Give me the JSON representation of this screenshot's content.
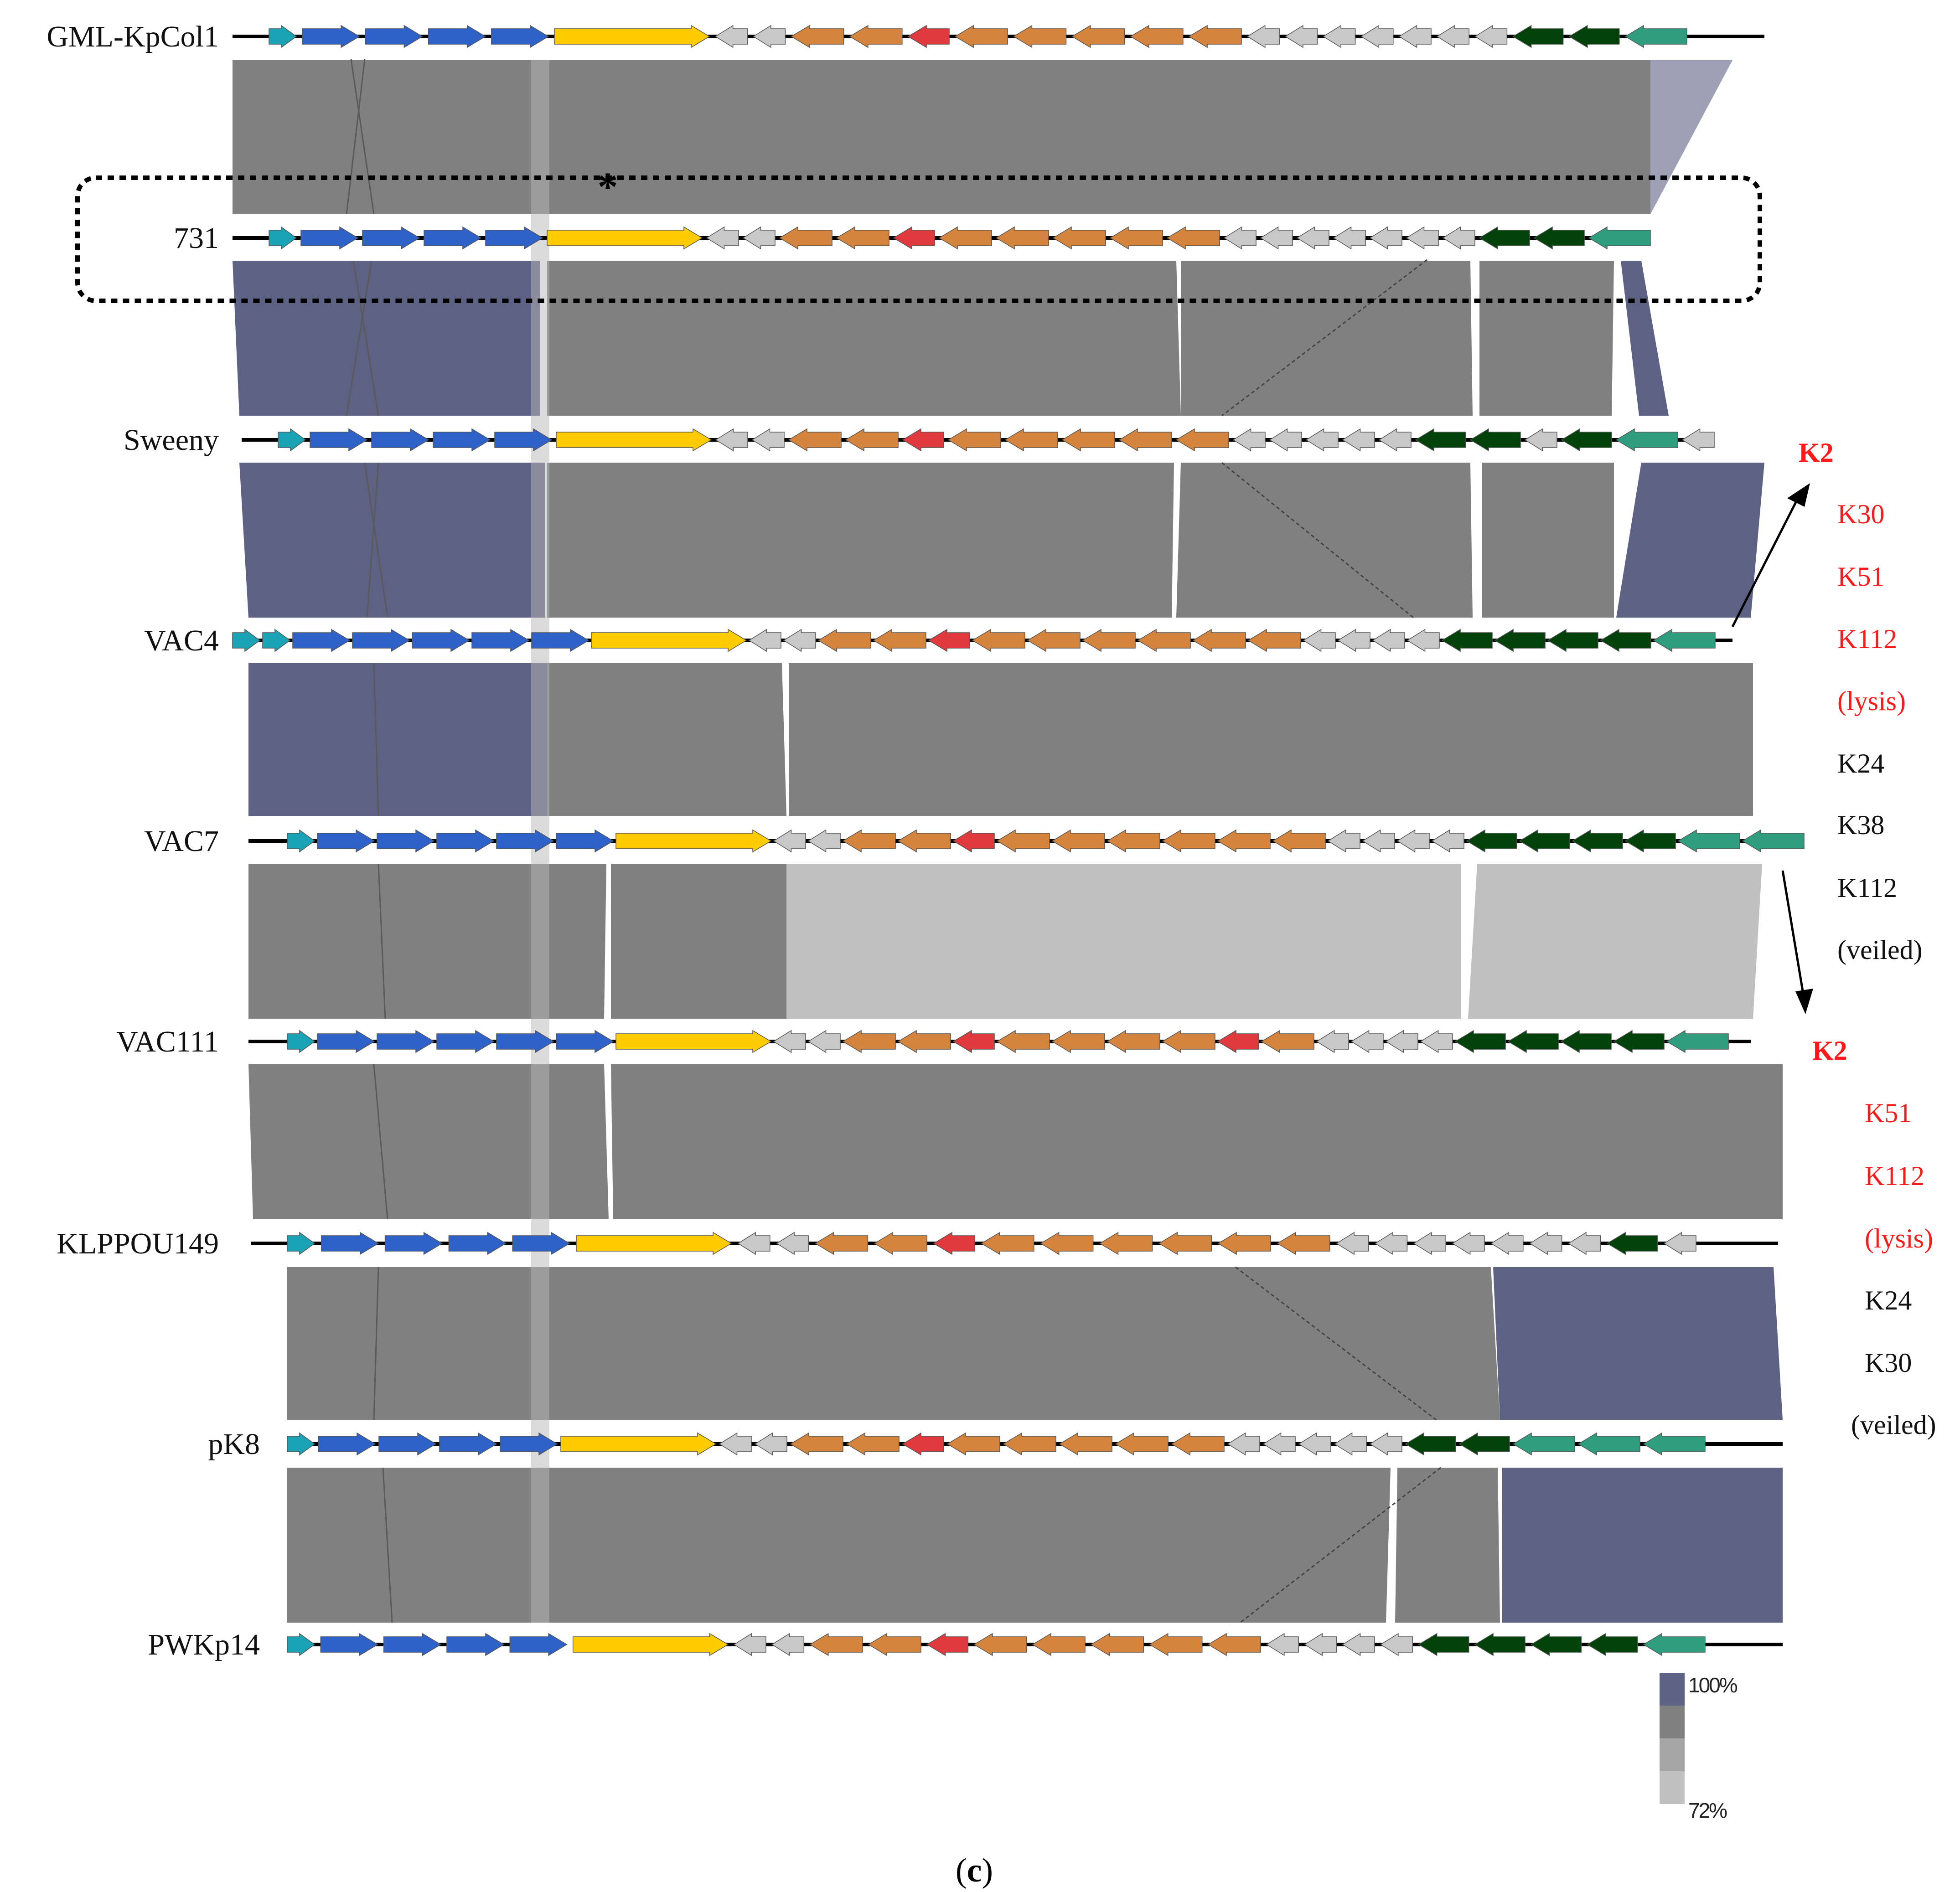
{
  "figure": {
    "panel_label_open": "(",
    "panel_label_letter": "c",
    "panel_label_close": ")",
    "asterisk": "*"
  },
  "gene_colors": {
    "A": "#1aa3b5",
    "B": "#2e62c9",
    "Y": "#ffcc00",
    "G": "#c8c8c8",
    "O": "#d4843c",
    "R": "#e0393e",
    "D": "#00420a",
    "T": "#2e9e7e"
  },
  "identity_colors": {
    "level1": "#5d6183",
    "level2": "#808080",
    "level3": "#a6a6a6",
    "level4": "#c0c0c0"
  },
  "tracks": [
    {
      "name": "GML-KpCol1",
      "genes": "A+ B+ B+ B+ B+ Y+ G- G- O- O- R- O- O- O- O- O- G- G- G- G- G- G- G- D- D- T-"
    },
    {
      "name": "731",
      "genes": "A+ B+ B+ B+ B+ Y+ G- G- O- O- R- O- O- O- O- O- G- G- G- G- G- G- G- D- D- T-"
    },
    {
      "name": "Sweeny",
      "genes": "A+ B+ B+ B+ B+ Y+ G- G- O- O- R- O- O- O- O- O- G- G- G- G- G- D- D- G- D- T- G-"
    },
    {
      "name": "VAC4",
      "genes": "A+ A+ B+ B+ B+ B+ B+ Y+ G- G- O- O- R- O- O- O- O- O- O- G- G- G- G- D- D- D- D- T-"
    },
    {
      "name": "VAC7",
      "genes": "A+ B+ B+ B+ B+ B+ Y+ G- G- O- O- R- O- O- O- O- O- O- G- G- G- G- D- D- D- D- T- T-"
    },
    {
      "name": "VAC111",
      "genes": "A+ B+ B+ B+ B+ B+ Y+ G- G- O- O- R- O- O- O- O- R- O- G- G- G- G- D- D- D- D- T-"
    },
    {
      "name": "KLPPOU149",
      "genes": "A+ B+ B+ B+ B+ Y+ G- G- O- O- R- O- O- O- O- O- O- G- G- G- G- G- G- G- D- G-"
    },
    {
      "name": "pK8",
      "genes": "A+ B+ B+ B+ B+ Y+ G- G- O- O- R- O- O- O- O- O- G- G- G- G- G- D- D- T- T- T-"
    },
    {
      "name": "PWKp14",
      "genes": "A+ B+ B+ B+ B+ Y+ G- G- O- O- R- O- O- O- O- O- G- G- G- G- D- D- D- D- T-"
    }
  ],
  "annotations": [
    {
      "text": "K2",
      "color": "#ff1a1a",
      "bold": true
    },
    {
      "text": "K30",
      "color": "#ff1a1a",
      "bold": false
    },
    {
      "text": "K51",
      "color": "#ff1a1a",
      "bold": false
    },
    {
      "text": "K112",
      "color": "#ff1a1a",
      "bold": false
    },
    {
      "text": "(lysis)",
      "color": "#ff1a1a",
      "bold": false
    },
    {
      "text": "K24",
      "color": "#111111",
      "bold": false
    },
    {
      "text": "K38",
      "color": "#111111",
      "bold": false
    },
    {
      "text": "K112",
      "color": "#111111",
      "bold": false
    },
    {
      "text": "(veiled)",
      "color": "#111111",
      "bold": false
    },
    {
      "text": "K2",
      "color": "#ff1a1a",
      "bold": true
    },
    {
      "text": "K51",
      "color": "#ff1a1a",
      "bold": false
    },
    {
      "text": "K112",
      "color": "#ff1a1a",
      "bold": false
    },
    {
      "text": "(lysis)",
      "color": "#ff1a1a",
      "bold": false
    },
    {
      "text": "K24",
      "color": "#111111",
      "bold": false
    },
    {
      "text": "K30",
      "color": "#111111",
      "bold": false
    },
    {
      "text": "(veiled)",
      "color": "#111111",
      "bold": false
    }
  ],
  "legend": {
    "max_label": "100%",
    "min_label": "72%"
  }
}
